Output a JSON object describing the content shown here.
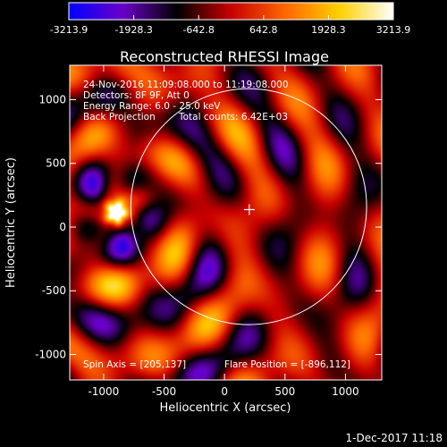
{
  "colorbar": {
    "ticks": [
      "-3213.9",
      "-1928.3",
      "-642.8",
      "642.8",
      "1928.3",
      "3213.9"
    ],
    "stops": [
      "#0000ff",
      "#6a00c8",
      "#000000",
      "#c80000",
      "#ff6600",
      "#ffd000",
      "#ffffff"
    ]
  },
  "chart_data": {
    "type": "heatmap",
    "title": "Reconstructed RHESSI Image",
    "xlabel": "Heliocentric X (arcsec)",
    "ylabel": "Heliocentric Y (arcsec)",
    "xlim": [
      -1280,
      1300
    ],
    "ylim": [
      -1200,
      1270
    ],
    "xticks": [
      -1000,
      -500,
      0,
      500,
      1000
    ],
    "yticks": [
      -1000,
      -500,
      0,
      500,
      1000
    ],
    "value_range": [
      -3213.9,
      3213.9
    ],
    "solar_disk_center": [
      200,
      160
    ],
    "solar_disk_radius_arcsec": 975,
    "cross_marker": [
      205,
      137
    ],
    "brightest_source": [
      -896,
      112
    ],
    "annotations": {
      "time": "24-Nov-2016 11:09:08.000 to 11:19:08.000",
      "detectors": "Detectors: 8F 9F, Att 0",
      "energy": "Energy Range: 6.0 - 25.0 keV",
      "method": "Back Projection",
      "counts": "Total counts: 6.42E+03",
      "spin_axis": "Spin Axis = [205,137]",
      "flare_position": "Flare Position = [-896,112]"
    }
  },
  "footer": {
    "date": "1-Dec-2017 11:18"
  }
}
